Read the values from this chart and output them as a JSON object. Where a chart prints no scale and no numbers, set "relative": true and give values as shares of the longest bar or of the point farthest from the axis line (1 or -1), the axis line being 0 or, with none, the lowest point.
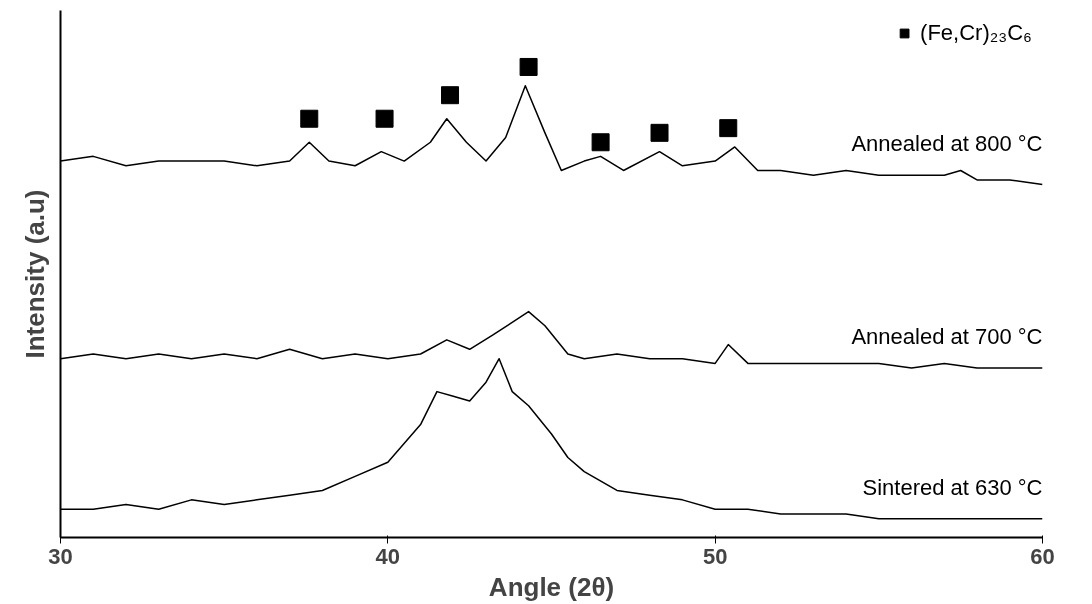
{
  "chart_data": {
    "type": "line",
    "relative": true,
    "xlabel": "Angle (2θ)",
    "ylabel": "Intensity (a.u)",
    "xlim": [
      30,
      60
    ],
    "xticks": [
      30,
      40,
      50,
      60
    ],
    "tick_labels": "x",
    "grid": false,
    "legend": "top right",
    "marker": "none",
    "line_style": "solid",
    "series": [
      {
        "name": "Annealed at 800 °C",
        "color": "#000000",
        "x": [
          30,
          31,
          32,
          33,
          34,
          35,
          36,
          37,
          37.6,
          38.2,
          39,
          39.8,
          40.5,
          41.3,
          41.8,
          42.4,
          43,
          43.6,
          44.2,
          44.8,
          45.3,
          46,
          46.5,
          47.2,
          48.3,
          49,
          50,
          50.6,
          51.3,
          52,
          53,
          54,
          55,
          56,
          57,
          57.5,
          58,
          59,
          60
        ],
        "values": [
          0.8,
          0.81,
          0.79,
          0.8,
          0.8,
          0.8,
          0.79,
          0.8,
          0.84,
          0.8,
          0.79,
          0.82,
          0.8,
          0.84,
          0.89,
          0.84,
          0.8,
          0.85,
          0.96,
          0.86,
          0.78,
          0.8,
          0.81,
          0.78,
          0.82,
          0.79,
          0.8,
          0.83,
          0.78,
          0.78,
          0.77,
          0.78,
          0.77,
          0.77,
          0.77,
          0.78,
          0.76,
          0.76,
          0.75
        ]
      },
      {
        "name": "Annealed at 700 °C",
        "color": "#000000",
        "x": [
          30,
          31,
          32,
          33,
          34,
          35,
          36,
          37,
          38,
          39,
          40,
          41,
          41.8,
          42.5,
          43.2,
          44.3,
          44.8,
          45.5,
          46,
          47,
          48,
          49,
          50,
          50.4,
          51,
          52,
          53,
          54,
          55,
          56,
          57,
          58,
          59,
          60
        ],
        "values": [
          0.38,
          0.39,
          0.38,
          0.39,
          0.38,
          0.39,
          0.38,
          0.4,
          0.38,
          0.39,
          0.38,
          0.39,
          0.42,
          0.4,
          0.43,
          0.48,
          0.45,
          0.39,
          0.38,
          0.39,
          0.38,
          0.38,
          0.37,
          0.41,
          0.37,
          0.37,
          0.37,
          0.37,
          0.37,
          0.36,
          0.37,
          0.36,
          0.36,
          0.36
        ]
      },
      {
        "name": "Sintered at 630 °C",
        "color": "#000000",
        "x": [
          30,
          31,
          32,
          33,
          34,
          35,
          36,
          37,
          38,
          39,
          40,
          41,
          41.5,
          42,
          42.5,
          43,
          43.4,
          43.8,
          44.3,
          45,
          45.5,
          46,
          47,
          48,
          49,
          50,
          51,
          52,
          53,
          54,
          55,
          56,
          57,
          58,
          59,
          60
        ],
        "values": [
          0.06,
          0.06,
          0.07,
          0.06,
          0.08,
          0.07,
          0.08,
          0.09,
          0.1,
          0.13,
          0.16,
          0.24,
          0.31,
          0.3,
          0.29,
          0.33,
          0.38,
          0.31,
          0.28,
          0.22,
          0.17,
          0.14,
          0.1,
          0.09,
          0.08,
          0.06,
          0.06,
          0.05,
          0.05,
          0.05,
          0.04,
          0.04,
          0.04,
          0.04,
          0.04,
          0.04
        ]
      },
      {
        "name": "(Fe,Cr)₂₃C₆",
        "type": "scatter",
        "marker": "square",
        "color": "#000000",
        "x": [
          37.6,
          39.9,
          41.9,
          44.3,
          46.5,
          48.3,
          50.4
        ],
        "values": [
          0.89,
          0.89,
          0.94,
          1.0,
          0.84,
          0.86,
          0.87
        ]
      }
    ]
  }
}
